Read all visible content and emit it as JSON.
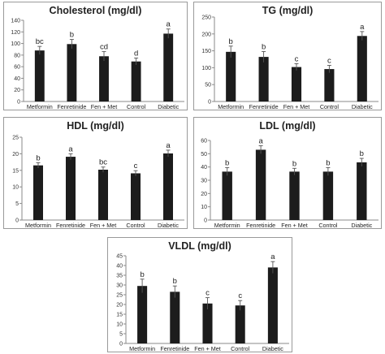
{
  "chart_data": [
    {
      "type": "bar",
      "title": "Cholesterol (mg/dl)",
      "categories": [
        "Metformin",
        "Fenretinide",
        "Fen + Met",
        "Control",
        "Diabetic"
      ],
      "values": [
        88,
        99,
        78,
        69,
        117
      ],
      "errors": [
        7,
        8,
        8,
        6,
        8
      ],
      "labels": [
        "bc",
        "b",
        "cd",
        "d",
        "a"
      ],
      "ylim": [
        0,
        140
      ],
      "yticks": [
        "0",
        "20",
        "40",
        "60",
        "80",
        "100",
        "120",
        "140"
      ],
      "color": "#1c1c1c",
      "grid": false
    },
    {
      "type": "bar",
      "title": "TG (mg/dl)",
      "categories": [
        "Metformin",
        "Fenretinide",
        "Fen + Met",
        "Control",
        "Diabetic"
      ],
      "values": [
        147,
        132,
        102,
        96,
        194
      ],
      "errors": [
        17,
        16,
        10,
        11,
        13
      ],
      "labels": [
        "b",
        "b",
        "c",
        "c",
        "a"
      ],
      "ylim": [
        0,
        250
      ],
      "yticks": [
        "0",
        "50",
        "100",
        "150",
        "200",
        "250"
      ],
      "color": "#1c1c1c",
      "grid": false
    },
    {
      "type": "bar",
      "title": "HDL (mg/dl)",
      "categories": [
        "Metformin",
        "Fenretinide",
        "Fen + Met",
        "Control",
        "Diabetic"
      ],
      "values": [
        16.5,
        19.1,
        15.2,
        14.1,
        20.1
      ],
      "errors": [
        0.8,
        0.9,
        0.8,
        0.8,
        1.0
      ],
      "labels": [
        "b",
        "a",
        "bc",
        "c",
        "a"
      ],
      "ylim": [
        0,
        25
      ],
      "yticks": [
        "0",
        "5",
        "10",
        "15",
        "20",
        "25"
      ],
      "color": "#1c1c1c",
      "grid": false
    },
    {
      "type": "bar",
      "title": "LDL (mg/dl)",
      "categories": [
        "Metformin",
        "Fenretinide",
        "Fen + Met",
        "Control",
        "Diabetic"
      ],
      "values": [
        36.5,
        53,
        36.5,
        36.5,
        43.5
      ],
      "errors": [
        3,
        3,
        2.5,
        3,
        3
      ],
      "labels": [
        "b",
        "a",
        "b",
        "b",
        "b"
      ],
      "ylim": [
        0,
        60
      ],
      "yticks": [
        "0",
        "10",
        "20",
        "30",
        "40",
        "50",
        "60"
      ],
      "color": "#1c1c1c",
      "grid": false
    },
    {
      "type": "bar",
      "title": "VLDL (mg/dl)",
      "categories": [
        "Metformin",
        "Fenretinide",
        "Fen + Met",
        "Control",
        "Diabetic"
      ],
      "values": [
        29.5,
        26.5,
        20.5,
        19.5,
        39
      ],
      "errors": [
        3.5,
        3,
        3,
        2.5,
        3
      ],
      "labels": [
        "b",
        "b",
        "c",
        "c",
        "a"
      ],
      "ylim": [
        0,
        45
      ],
      "yticks": [
        "0",
        "5",
        "10",
        "15",
        "20",
        "25",
        "30",
        "35",
        "40",
        "45"
      ],
      "color": "#1c1c1c",
      "grid": false
    }
  ]
}
